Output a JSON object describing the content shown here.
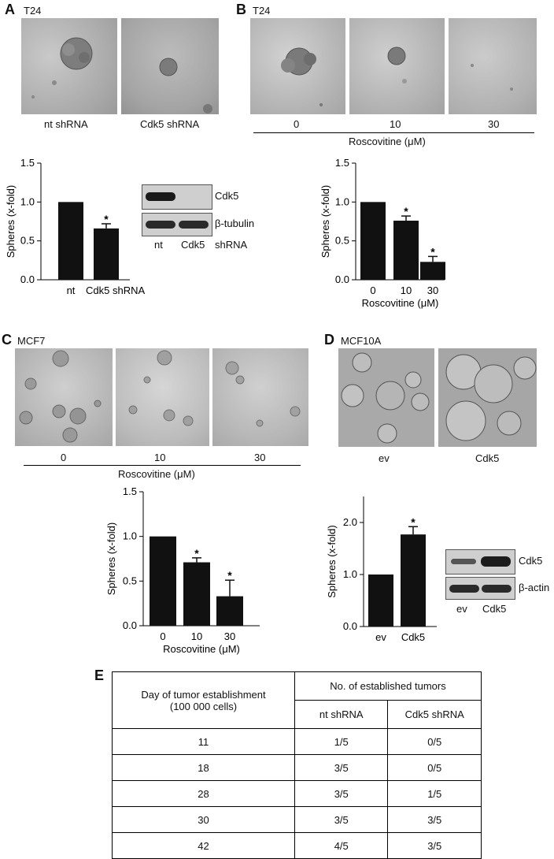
{
  "panelA": {
    "letter": "A",
    "cell_line": "T24",
    "image_labels": [
      "nt shRNA",
      "Cdk5 shRNA"
    ],
    "blot": {
      "bands": [
        "Cdk5",
        "β-tubulin"
      ],
      "lanes": [
        "nt",
        "Cdk5"
      ],
      "suffix": "shRNA"
    }
  },
  "panelB": {
    "letter": "B",
    "cell_line": "T24",
    "image_labels": [
      "0",
      "10",
      "30"
    ],
    "treatment": "Roscovitine (μM)"
  },
  "panelC": {
    "letter": "C",
    "cell_line": "MCF7",
    "image_labels": [
      "0",
      "10",
      "30"
    ],
    "treatment": "Roscovitine (μM)"
  },
  "panelD": {
    "letter": "D",
    "cell_line": "MCF10A",
    "image_labels": [
      "ev",
      "Cdk5"
    ],
    "blot": {
      "bands": [
        "Cdk5",
        "β-actin"
      ],
      "lanes": [
        "ev",
        "Cdk5"
      ]
    }
  },
  "panelE": {
    "letter": "E",
    "header_col1_line1": "Day of tumor establishment",
    "header_col1_line2": "(100 000 cells)",
    "header_group": "No. of established tumors",
    "sub_headers": [
      "nt shRNA",
      "Cdk5 shRNA"
    ],
    "rows": [
      [
        "11",
        "1/5",
        "0/5"
      ],
      [
        "18",
        "3/5",
        "0/5"
      ],
      [
        "28",
        "3/5",
        "1/5"
      ],
      [
        "30",
        "3/5",
        "3/5"
      ],
      [
        "42",
        "4/5",
        "3/5"
      ]
    ]
  },
  "chart_data": [
    {
      "type": "bar",
      "panel": "A",
      "categories": [
        "nt",
        "Cdk5 shRNA"
      ],
      "values": [
        1.0,
        0.66
      ],
      "errors": [
        0,
        0.06
      ],
      "significant": [
        false,
        true
      ],
      "ylabel": "Spheres (x-fold)",
      "xlabel": "",
      "ylim": [
        0,
        1.5
      ],
      "yticks": [
        "0.0",
        "0.5",
        "1.0",
        "1.5"
      ]
    },
    {
      "type": "bar",
      "panel": "B",
      "categories": [
        "0",
        "10",
        "30"
      ],
      "values": [
        1.0,
        0.76,
        0.23
      ],
      "errors": [
        0,
        0.06,
        0.07
      ],
      "significant": [
        false,
        true,
        true
      ],
      "ylabel": "Spheres (x-fold)",
      "xlabel": "Roscovitine (μM)",
      "ylim": [
        0,
        1.5
      ],
      "yticks": [
        "0.0",
        "0.5",
        "1.0",
        "1.5"
      ]
    },
    {
      "type": "bar",
      "panel": "C",
      "categories": [
        "0",
        "10",
        "30"
      ],
      "values": [
        1.0,
        0.71,
        0.33
      ],
      "errors": [
        0,
        0.05,
        0.18
      ],
      "significant": [
        false,
        true,
        true
      ],
      "ylabel": "Spheres (x-fold)",
      "xlabel": "Roscovitine (μM)",
      "ylim": [
        0,
        1.5
      ],
      "yticks": [
        "0.0",
        "0.5",
        "1.0",
        "1.5"
      ]
    },
    {
      "type": "bar",
      "panel": "D",
      "categories": [
        "ev",
        "Cdk5"
      ],
      "values": [
        1.0,
        1.77
      ],
      "errors": [
        0,
        0.15
      ],
      "significant": [
        false,
        true
      ],
      "ylabel": "Spheres (x-fold)",
      "xlabel": "",
      "ylim": [
        0,
        2.5
      ],
      "yticks": [
        "0.0",
        "1.0",
        "2.0"
      ],
      "ytick_values": [
        0,
        1,
        2
      ]
    }
  ]
}
